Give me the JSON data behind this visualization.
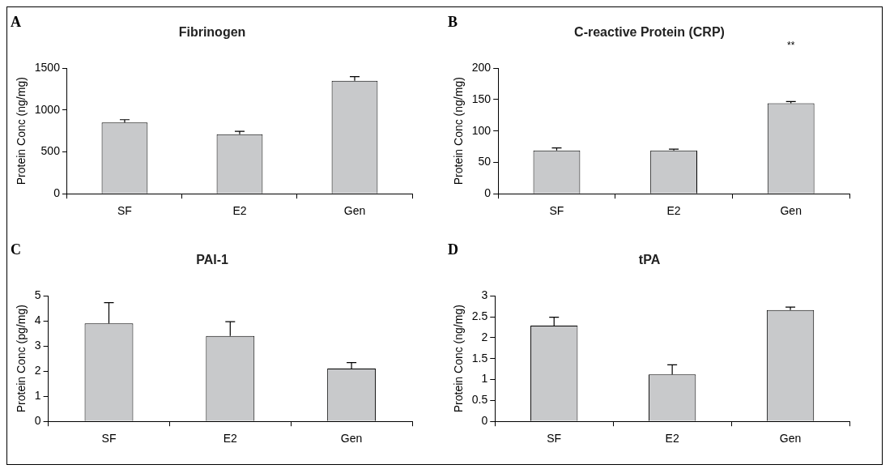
{
  "chart_data": [
    {
      "type": "bar",
      "title": "Fibrinogen",
      "ylabel": "Protein Conc (ng/mg)",
      "categories": [
        "SF",
        "E2",
        "Gen"
      ],
      "values": [
        850,
        710,
        1350
      ],
      "errors": [
        35,
        35,
        50
      ],
      "color": "#c8c9cb",
      "ylim": [
        0,
        1500
      ],
      "yticks": [
        0,
        500,
        1000,
        1500
      ],
      "grid": false,
      "legend": false,
      "annotations": [
        "A"
      ]
    },
    {
      "type": "bar",
      "title": "C-reactive Protein (CRP)",
      "ylabel": "Protein Conc (ng/mg)",
      "categories": [
        "SF",
        "E2",
        "Gen"
      ],
      "values": [
        69,
        69,
        144
      ],
      "errors": [
        4,
        2,
        3
      ],
      "color": "#c8c9cb",
      "ylim": [
        0,
        200
      ],
      "yticks": [
        0,
        50,
        100,
        150,
        200
      ],
      "grid": false,
      "legend": false,
      "annotations": [
        "B",
        "**"
      ]
    },
    {
      "type": "bar",
      "title": "PAI-1",
      "ylabel": "Protein Conc (pg/mg)",
      "categories": [
        "SF",
        "E2",
        "Gen"
      ],
      "values": [
        3.9,
        3.4,
        2.1
      ],
      "errors": [
        0.83,
        0.57,
        0.24
      ],
      "color": "#c8c9cb",
      "ylim": [
        0,
        5
      ],
      "yticks": [
        0,
        1,
        2,
        3,
        4,
        5
      ],
      "grid": false,
      "legend": false,
      "annotations": [
        "C"
      ]
    },
    {
      "type": "bar",
      "title": "tPA",
      "ylabel": "Protein Conc (ng/mg)",
      "categories": [
        "SF",
        "E2",
        "Gen"
      ],
      "values": [
        2.29,
        1.12,
        2.66
      ],
      "errors": [
        0.2,
        0.23,
        0.07
      ],
      "color": "#c8c9cb",
      "ylim": [
        0,
        3
      ],
      "yticks": [
        0,
        0.5,
        1,
        1.5,
        2,
        2.5,
        3
      ],
      "grid": false,
      "legend": false,
      "annotations": [
        "D"
      ]
    }
  ]
}
